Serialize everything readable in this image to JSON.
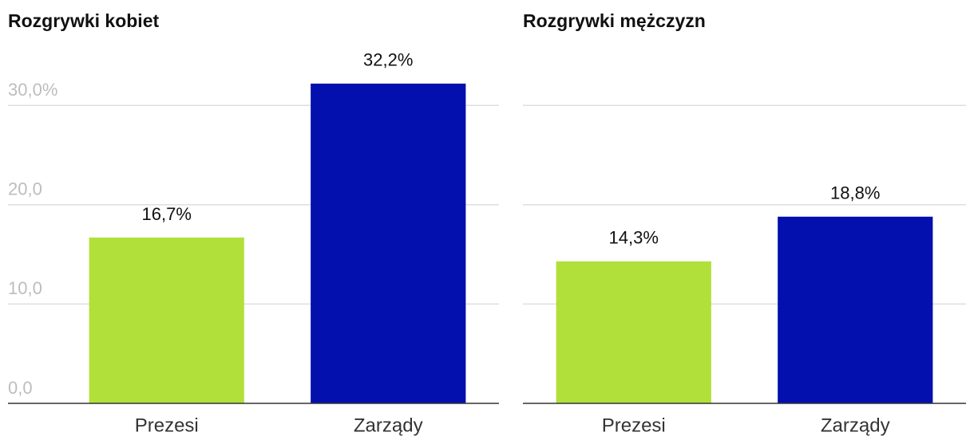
{
  "chart_data": [
    {
      "type": "bar",
      "title": "Rozgrywki kobiet",
      "categories": [
        "Prezesi",
        "Zarządy"
      ],
      "values": [
        16.7,
        32.2
      ],
      "value_labels": [
        "16,7%",
        "32,2%"
      ],
      "colors": [
        "#b2e03a",
        "#0410ad"
      ],
      "ylim": [
        0,
        35
      ],
      "yticks": [
        {
          "value": 0,
          "label": "0,0"
        },
        {
          "value": 10,
          "label": "10,0"
        },
        {
          "value": 20,
          "label": "20,0"
        },
        {
          "value": 30,
          "label": "30,0%"
        }
      ],
      "tick_labels": true,
      "grid": true
    },
    {
      "type": "bar",
      "title": "Rozgrywki mężczyzn",
      "categories": [
        "Prezesi",
        "Zarządy"
      ],
      "values": [
        14.3,
        18.8
      ],
      "value_labels": [
        "14,3%",
        "18,8%"
      ],
      "colors": [
        "#b2e03a",
        "#0410ad"
      ],
      "ylim": [
        0,
        35
      ],
      "yticks": [
        0,
        10,
        20,
        30
      ],
      "tick_labels": false,
      "grid": true
    }
  ]
}
